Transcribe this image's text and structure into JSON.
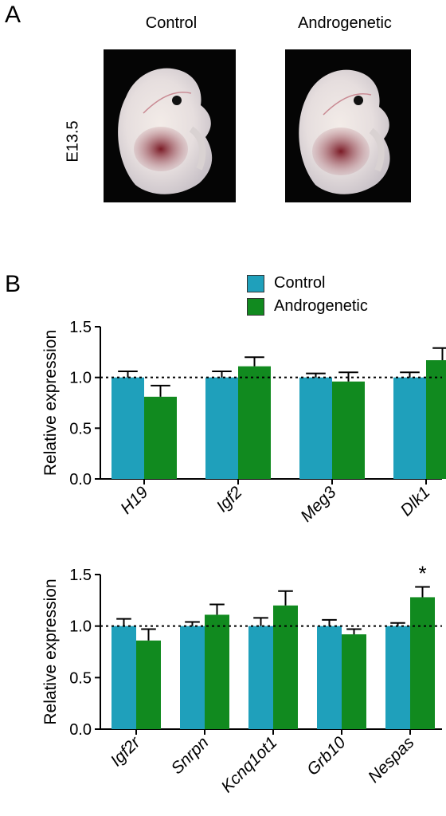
{
  "panel_a": {
    "letter": "A",
    "stage_label": "E13.5",
    "columns": [
      "Control",
      "Androgenetic"
    ]
  },
  "panel_b": {
    "letter": "B"
  },
  "colors": {
    "control": "#1fa0bb",
    "androgenetic": "#118a1f"
  },
  "legend": {
    "control": "Control",
    "androgenetic": "Androgenetic"
  },
  "chart_data": [
    {
      "type": "bar",
      "ylabel": "Relative expression",
      "ylim": [
        0,
        1.5
      ],
      "yticks": [
        "0.0",
        "0.5",
        "1.0",
        "1.5"
      ],
      "reference_line": 1.0,
      "categories": [
        "H19",
        "Igf2",
        "Meg3",
        "Dlk1"
      ],
      "series": [
        {
          "name": "Control",
          "values": [
            1.0,
            1.0,
            1.0,
            1.0
          ],
          "errors": [
            0.06,
            0.06,
            0.04,
            0.05
          ]
        },
        {
          "name": "Androgenetic",
          "values": [
            0.81,
            1.11,
            0.96,
            1.17
          ],
          "errors": [
            0.11,
            0.09,
            0.09,
            0.12
          ]
        }
      ],
      "annotations": []
    },
    {
      "type": "bar",
      "ylabel": "Relative expression",
      "ylim": [
        0,
        1.5
      ],
      "yticks": [
        "0.0",
        "0.5",
        "1.0",
        "1.5"
      ],
      "reference_line": 1.0,
      "categories": [
        "Igf2r",
        "Snrpn",
        "Kcnq1ot1",
        "Grb10",
        "Nespas"
      ],
      "series": [
        {
          "name": "Control",
          "values": [
            1.0,
            1.0,
            1.0,
            1.0,
            1.0
          ],
          "errors": [
            0.07,
            0.04,
            0.08,
            0.06,
            0.03
          ]
        },
        {
          "name": "Androgenetic",
          "values": [
            0.86,
            1.11,
            1.2,
            0.92,
            1.28
          ],
          "errors": [
            0.11,
            0.1,
            0.14,
            0.05,
            0.1
          ]
        }
      ],
      "annotations": [
        {
          "category": "Nespas",
          "series": "Androgenetic",
          "text": "*"
        }
      ]
    }
  ]
}
